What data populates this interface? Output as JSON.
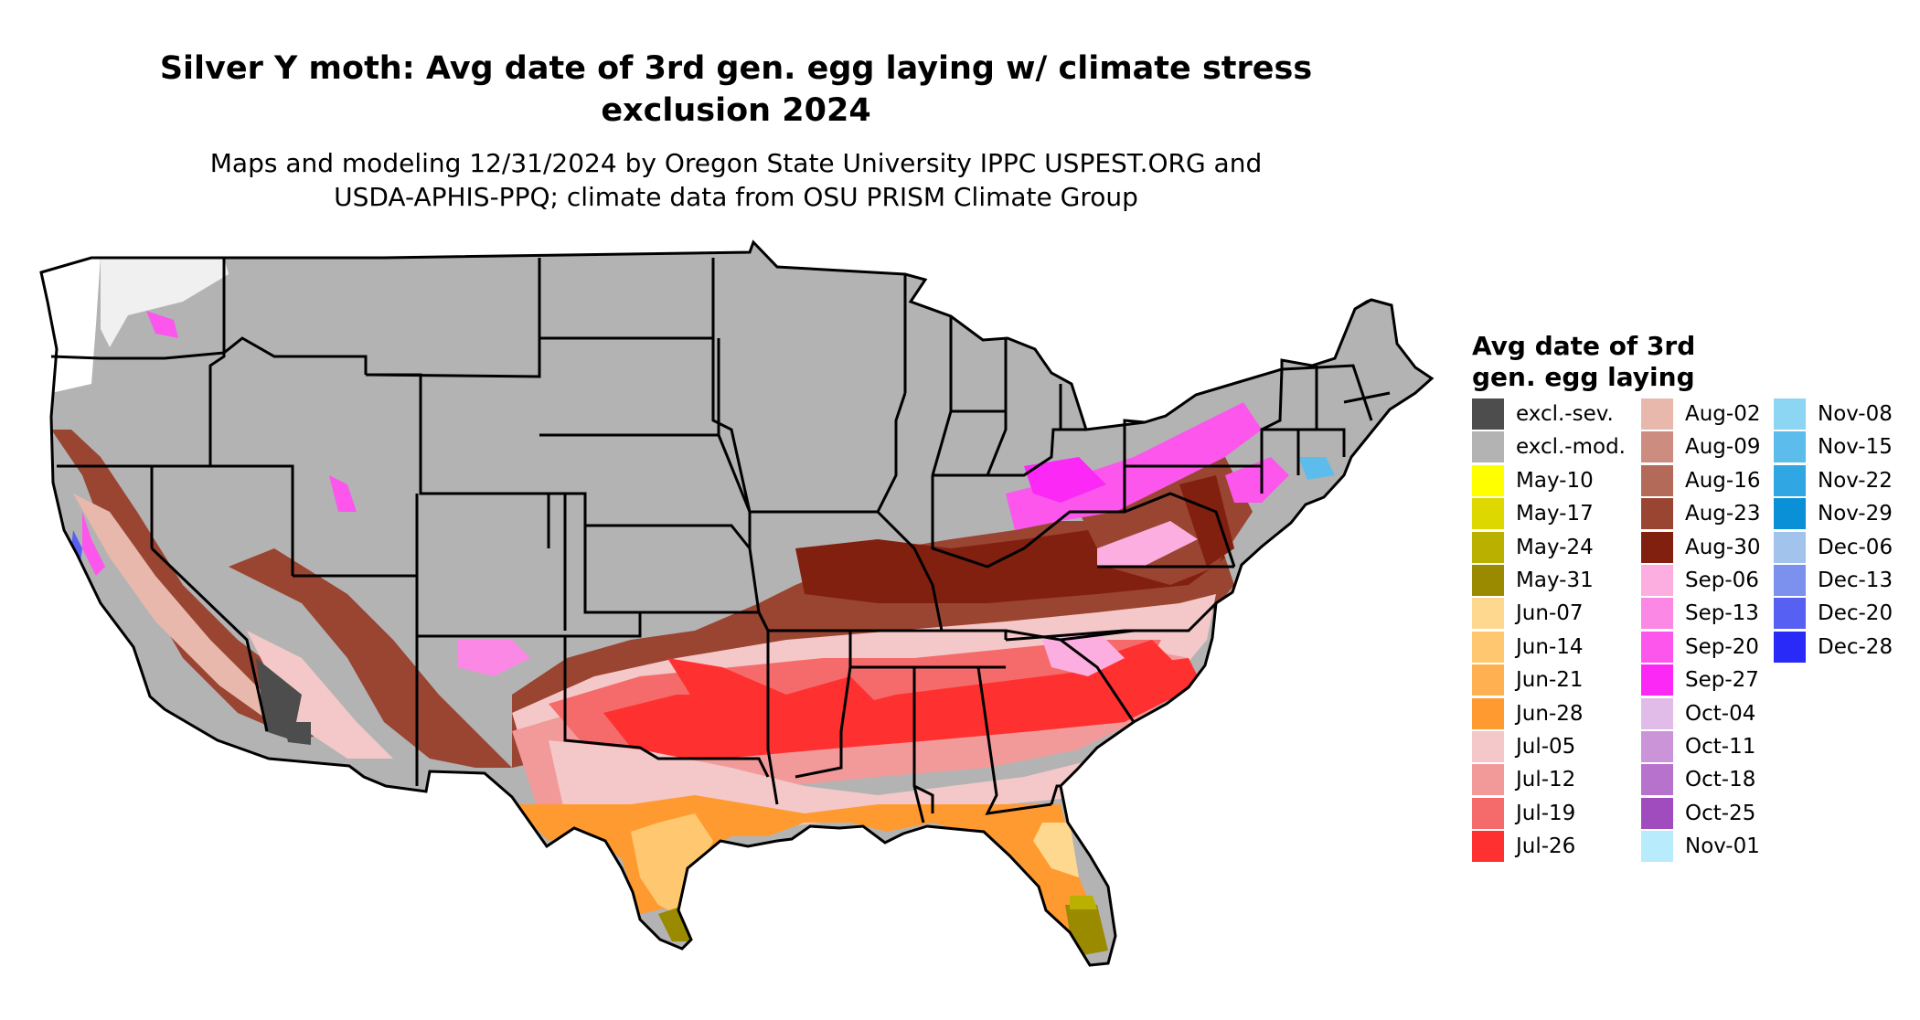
{
  "title_lines": [
    "Silver Y moth: Avg date of 3rd gen. egg laying w/ climate stress",
    "exclusion 2024"
  ],
  "subtitle_lines": [
    "Maps and modeling 12/31/2024 by Oregon State University IPPC USPEST.ORG and",
    "USDA-APHIS-PPQ; climate data from OSU PRISM Climate Group"
  ],
  "legend": {
    "title_lines": [
      "Avg date of 3rd",
      "gen. egg laying"
    ],
    "items": [
      {
        "label": "excl.-sev.",
        "color": "#4d4d4d"
      },
      {
        "label": "excl.-mod.",
        "color": "#b3b3b3"
      },
      {
        "label": "May-10",
        "color": "#ffff00"
      },
      {
        "label": "May-17",
        "color": "#dcd800"
      },
      {
        "label": "May-24",
        "color": "#bab000"
      },
      {
        "label": "May-31",
        "color": "#9a8a00"
      },
      {
        "label": "Jun-07",
        "color": "#ffd890"
      },
      {
        "label": "Jun-14",
        "color": "#ffc870"
      },
      {
        "label": "Jun-21",
        "color": "#ffb050"
      },
      {
        "label": "Jun-28",
        "color": "#ff9a30"
      },
      {
        "label": "Jul-05",
        "color": "#f4c8c8"
      },
      {
        "label": "Jul-12",
        "color": "#f29a9a"
      },
      {
        "label": "Jul-19",
        "color": "#f56a6a"
      },
      {
        "label": "Jul-26",
        "color": "#ff3030"
      },
      {
        "label": "Aug-02",
        "color": "#e8b8ac"
      },
      {
        "label": "Aug-09",
        "color": "#cc8c80"
      },
      {
        "label": "Aug-16",
        "color": "#b46a58"
      },
      {
        "label": "Aug-23",
        "color": "#9a4432"
      },
      {
        "label": "Aug-30",
        "color": "#822010"
      },
      {
        "label": "Sep-06",
        "color": "#fcaee0"
      },
      {
        "label": "Sep-13",
        "color": "#fc88e6"
      },
      {
        "label": "Sep-20",
        "color": "#fc56ec"
      },
      {
        "label": "Sep-27",
        "color": "#fc28f6"
      },
      {
        "label": "Oct-04",
        "color": "#e2bce8"
      },
      {
        "label": "Oct-11",
        "color": "#cc94d8"
      },
      {
        "label": "Oct-18",
        "color": "#b672cc"
      },
      {
        "label": "Oct-25",
        "color": "#a04cbe"
      },
      {
        "label": "Nov-01",
        "color": "#b8ecfc"
      },
      {
        "label": "Nov-08",
        "color": "#8cd6f4"
      },
      {
        "label": "Nov-15",
        "color": "#5cbcec"
      },
      {
        "label": "Nov-22",
        "color": "#30a6e2"
      },
      {
        "label": "Nov-29",
        "color": "#0a90d6"
      },
      {
        "label": "Dec-06",
        "color": "#a2c4ec"
      },
      {
        "label": "Dec-13",
        "color": "#7c90ee"
      },
      {
        "label": "Dec-20",
        "color": "#5660f2"
      },
      {
        "label": "Dec-28",
        "color": "#2a2af8"
      }
    ]
  }
}
